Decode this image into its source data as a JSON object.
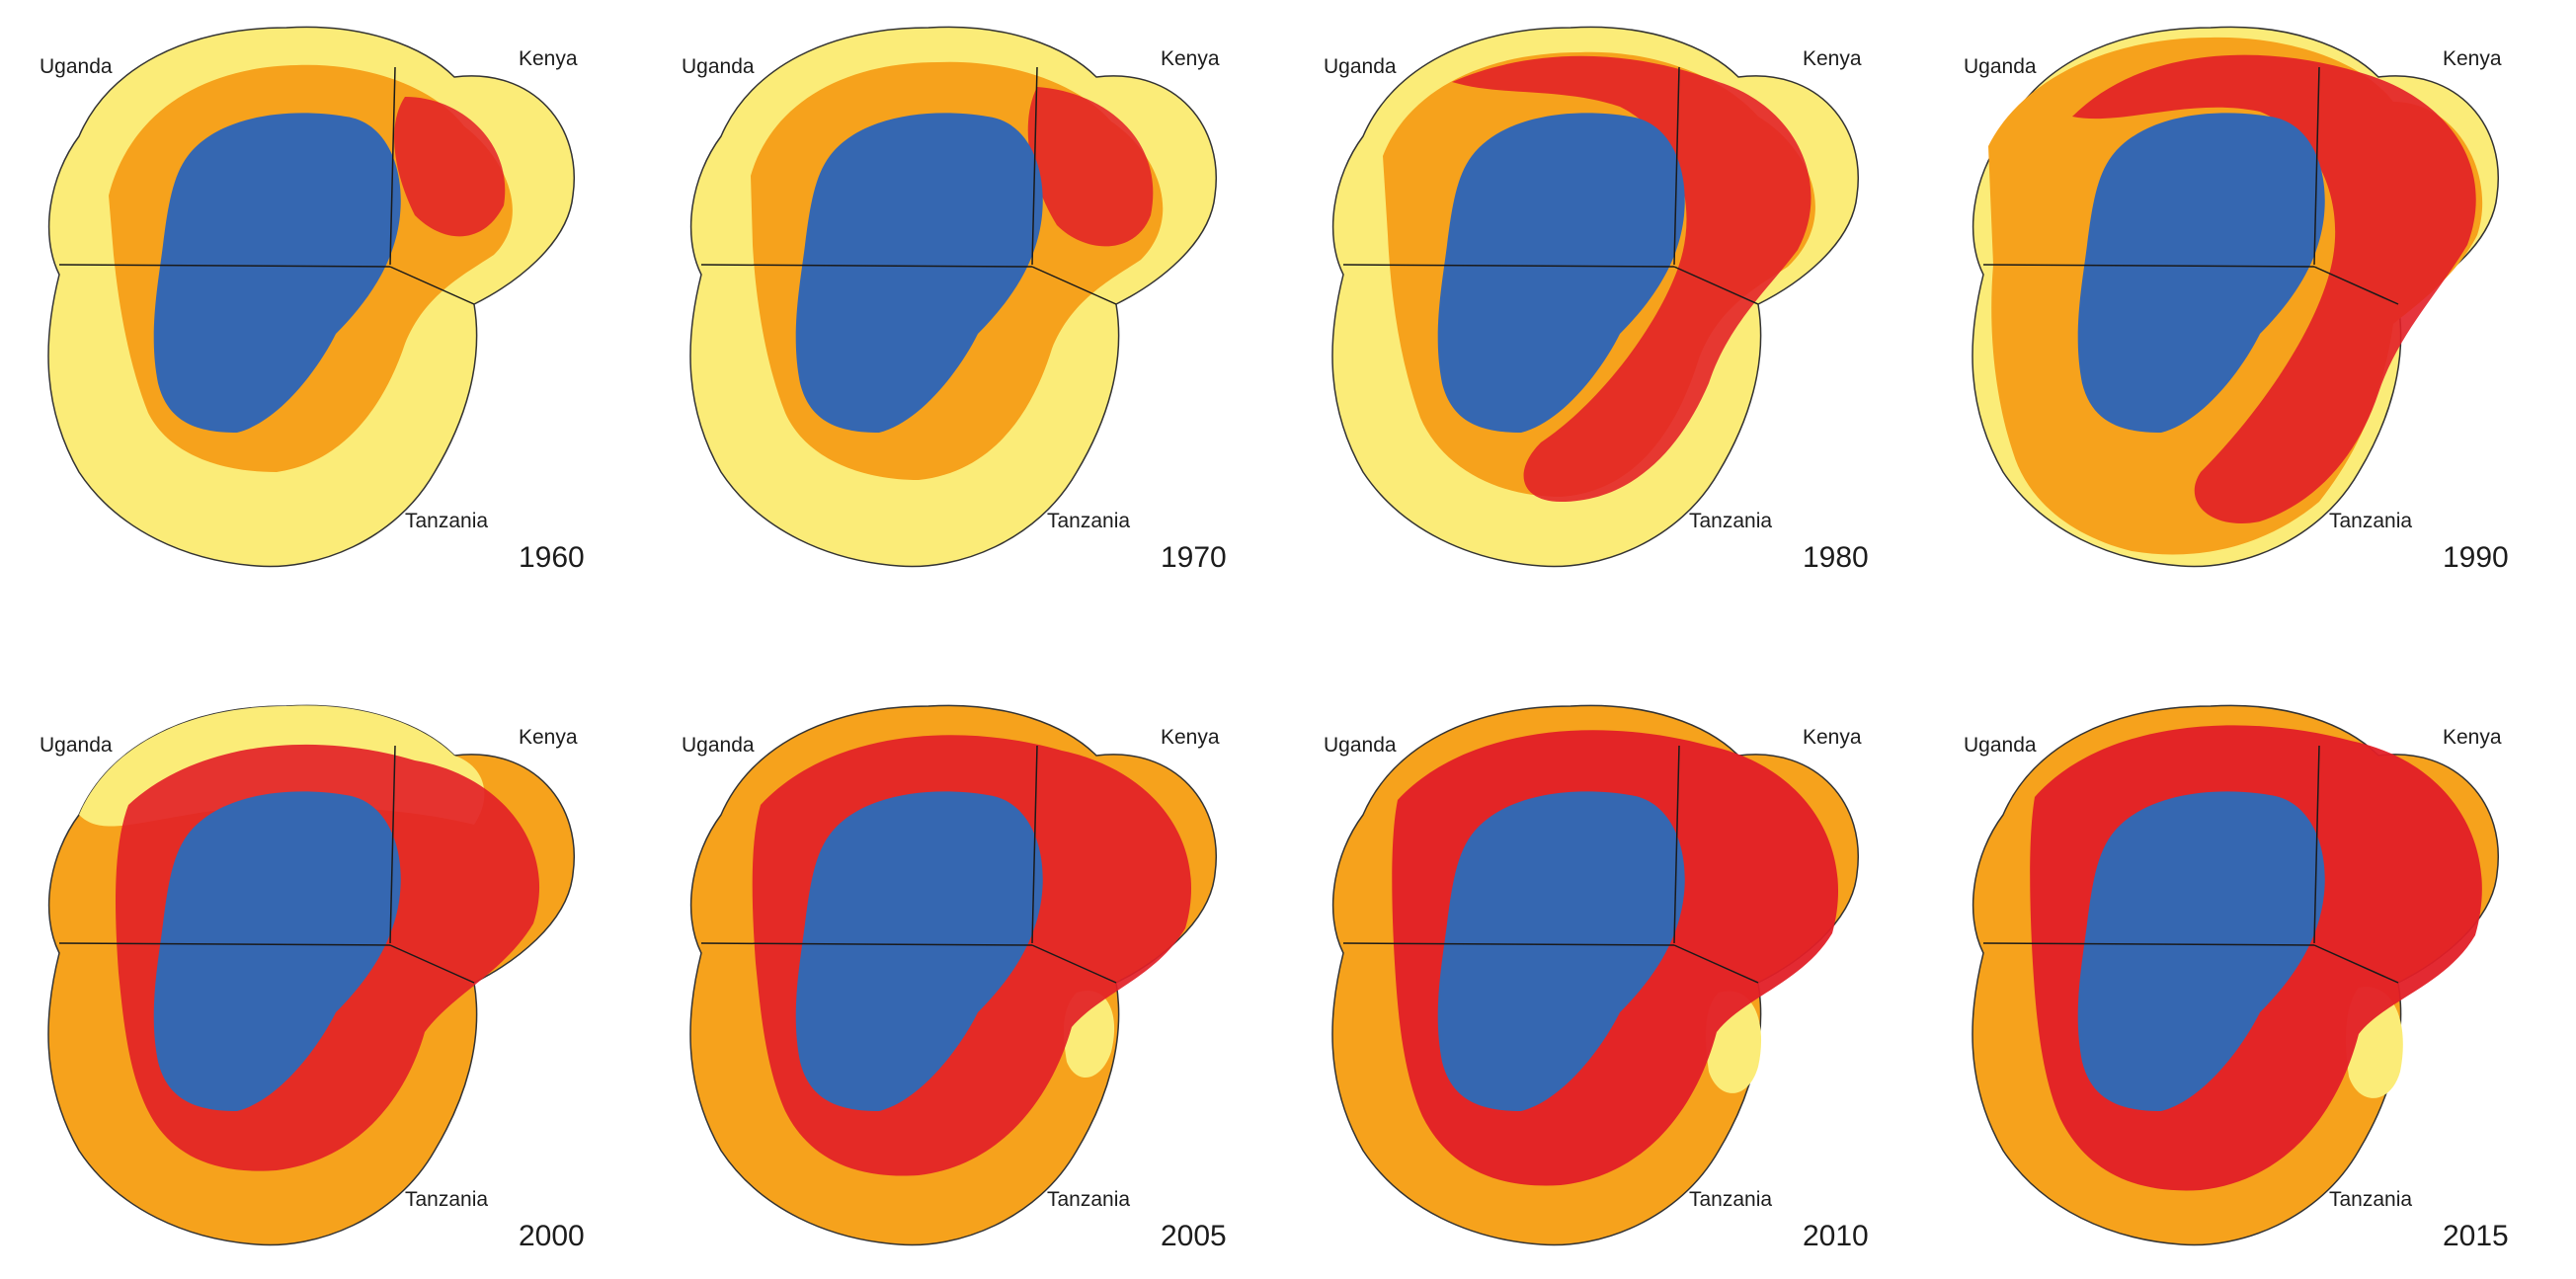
{
  "colors": {
    "lake": "#3567b1",
    "level_low": "#fbec78",
    "level_mid": "#f6a21c",
    "level_high": "#e21f27",
    "border": "#1a1a1a"
  },
  "panels": [
    {
      "year": "1960",
      "labels": {
        "uganda": "Uganda",
        "kenya": "Kenya",
        "tanzania": "Tanzania"
      }
    },
    {
      "year": "1970",
      "labels": {
        "uganda": "Uganda",
        "kenya": "Kenya",
        "tanzania": "Tanzania"
      }
    },
    {
      "year": "1980",
      "labels": {
        "uganda": "Uganda",
        "kenya": "Kenya",
        "tanzania": "Tanzania"
      }
    },
    {
      "year": "1990",
      "labels": {
        "uganda": "Uganda",
        "kenya": "Kenya",
        "tanzania": "Tanzania"
      }
    },
    {
      "year": "2000",
      "labels": {
        "uganda": "Uganda",
        "kenya": "Kenya",
        "tanzania": "Tanzania"
      }
    },
    {
      "year": "2005",
      "labels": {
        "uganda": "Uganda",
        "kenya": "Kenya",
        "tanzania": "Tanzania"
      }
    },
    {
      "year": "2010",
      "labels": {
        "uganda": "Uganda",
        "kenya": "Kenya",
        "tanzania": "Tanzania"
      }
    },
    {
      "year": "2015",
      "labels": {
        "uganda": "Uganda",
        "kenya": "Kenya",
        "tanzania": "Tanzania"
      }
    }
  ]
}
